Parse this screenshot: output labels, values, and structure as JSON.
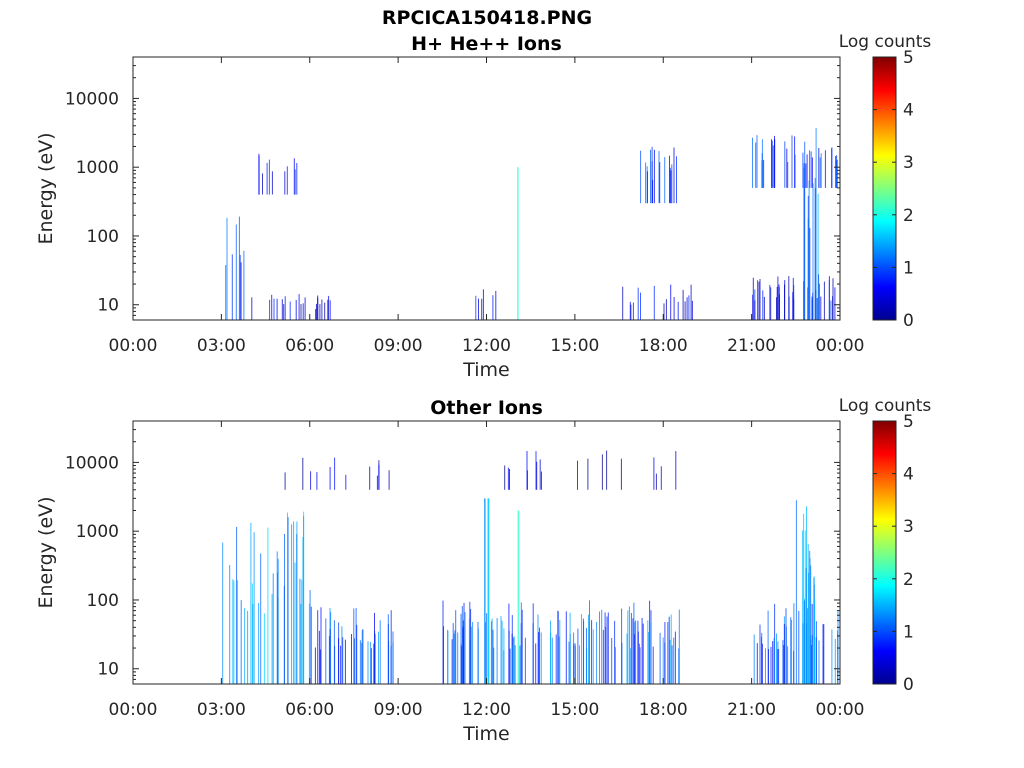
{
  "page_title": "RPCICA150418.PNG",
  "chart_data": [
    {
      "type": "heatmap",
      "title": "H+ He++ Ions",
      "xlabel": "Time",
      "ylabel": "Energy (eV)",
      "x_ticks": [
        "00:00",
        "03:00",
        "06:00",
        "09:00",
        "12:00",
        "15:00",
        "18:00",
        "21:00",
        "00:00"
      ],
      "y_scale": "log",
      "y_ticks": [
        10,
        100,
        1000,
        10000
      ],
      "ylim": [
        6,
        40000
      ],
      "colorbar": {
        "label": "Log counts",
        "min": 0,
        "max": 5,
        "ticks": [
          0,
          1,
          2,
          3,
          4,
          5
        ]
      },
      "activity": [
        {
          "t_start": "03:00",
          "t_end": "03:45",
          "e_min": 6,
          "e_max": 300,
          "log_counts": 1.0,
          "density": 0.35
        },
        {
          "t_start": "04:00",
          "t_end": "06:45",
          "e_min": 6,
          "e_max": 15,
          "log_counts": 0.5,
          "density": 0.3
        },
        {
          "t_start": "04:15",
          "t_end": "05:45",
          "e_min": 400,
          "e_max": 2000,
          "log_counts": 0.6,
          "density": 0.25
        },
        {
          "t_start": "13:00",
          "t_end": "13:05",
          "e_min": 6,
          "e_max": 1000,
          "log_counts": 2.0,
          "density": 1
        },
        {
          "t_start": "11:30",
          "t_end": "12:30",
          "e_min": 6,
          "e_max": 20,
          "log_counts": 0.5,
          "density": 0.2
        },
        {
          "t_start": "17:00",
          "t_end": "18:45",
          "e_min": 300,
          "e_max": 2000,
          "log_counts": 0.8,
          "density": 0.35
        },
        {
          "t_start": "16:00",
          "t_end": "19:00",
          "e_min": 6,
          "e_max": 20,
          "log_counts": 0.5,
          "density": 0.2
        },
        {
          "t_start": "21:00",
          "t_end": "23:55",
          "e_min": 500,
          "e_max": 3000,
          "log_counts": 0.8,
          "density": 0.4
        },
        {
          "t_start": "21:00",
          "t_end": "23:55",
          "e_min": 6,
          "e_max": 28,
          "log_counts": 0.6,
          "density": 0.5
        },
        {
          "t_start": "22:45",
          "t_end": "23:15",
          "e_min": 6,
          "e_max": 4000,
          "log_counts": 1.2,
          "density": 0.8
        }
      ]
    },
    {
      "type": "heatmap",
      "title": "Other Ions",
      "xlabel": "Time",
      "ylabel": "Energy (eV)",
      "x_ticks": [
        "00:00",
        "03:00",
        "06:00",
        "09:00",
        "12:00",
        "15:00",
        "18:00",
        "21:00",
        "00:00"
      ],
      "y_scale": "log",
      "y_ticks": [
        10,
        100,
        1000,
        10000
      ],
      "ylim": [
        6,
        40000
      ],
      "colorbar": {
        "label": "Log counts",
        "min": 0,
        "max": 5,
        "ticks": [
          0,
          1,
          2,
          3,
          4,
          5
        ]
      },
      "activity": [
        {
          "t_start": "03:00",
          "t_end": "06:00",
          "e_min": 6,
          "e_max": 2000,
          "log_counts": 1.3,
          "density": 0.45
        },
        {
          "t_start": "06:00",
          "t_end": "09:00",
          "e_min": 6,
          "e_max": 80,
          "log_counts": 1.0,
          "density": 0.5
        },
        {
          "t_start": "10:30",
          "t_end": "18:45",
          "e_min": 6,
          "e_max": 100,
          "log_counts": 1.1,
          "density": 0.55
        },
        {
          "t_start": "11:55",
          "t_end": "12:05",
          "e_min": 6,
          "e_max": 3000,
          "log_counts": 1.5,
          "density": 1
        },
        {
          "t_start": "13:00",
          "t_end": "13:05",
          "e_min": 6,
          "e_max": 2000,
          "log_counts": 2.0,
          "density": 1
        },
        {
          "t_start": "05:00",
          "t_end": "09:00",
          "e_min": 4000,
          "e_max": 12000,
          "log_counts": 0.4,
          "density": 0.1
        },
        {
          "t_start": "12:30",
          "t_end": "18:45",
          "e_min": 4000,
          "e_max": 15000,
          "log_counts": 0.4,
          "density": 0.1
        },
        {
          "t_start": "21:00",
          "t_end": "23:55",
          "e_min": 6,
          "e_max": 90,
          "log_counts": 1.0,
          "density": 0.55
        },
        {
          "t_start": "22:30",
          "t_end": "23:15",
          "e_min": 6,
          "e_max": 3000,
          "log_counts": 1.4,
          "density": 0.8
        }
      ]
    }
  ]
}
